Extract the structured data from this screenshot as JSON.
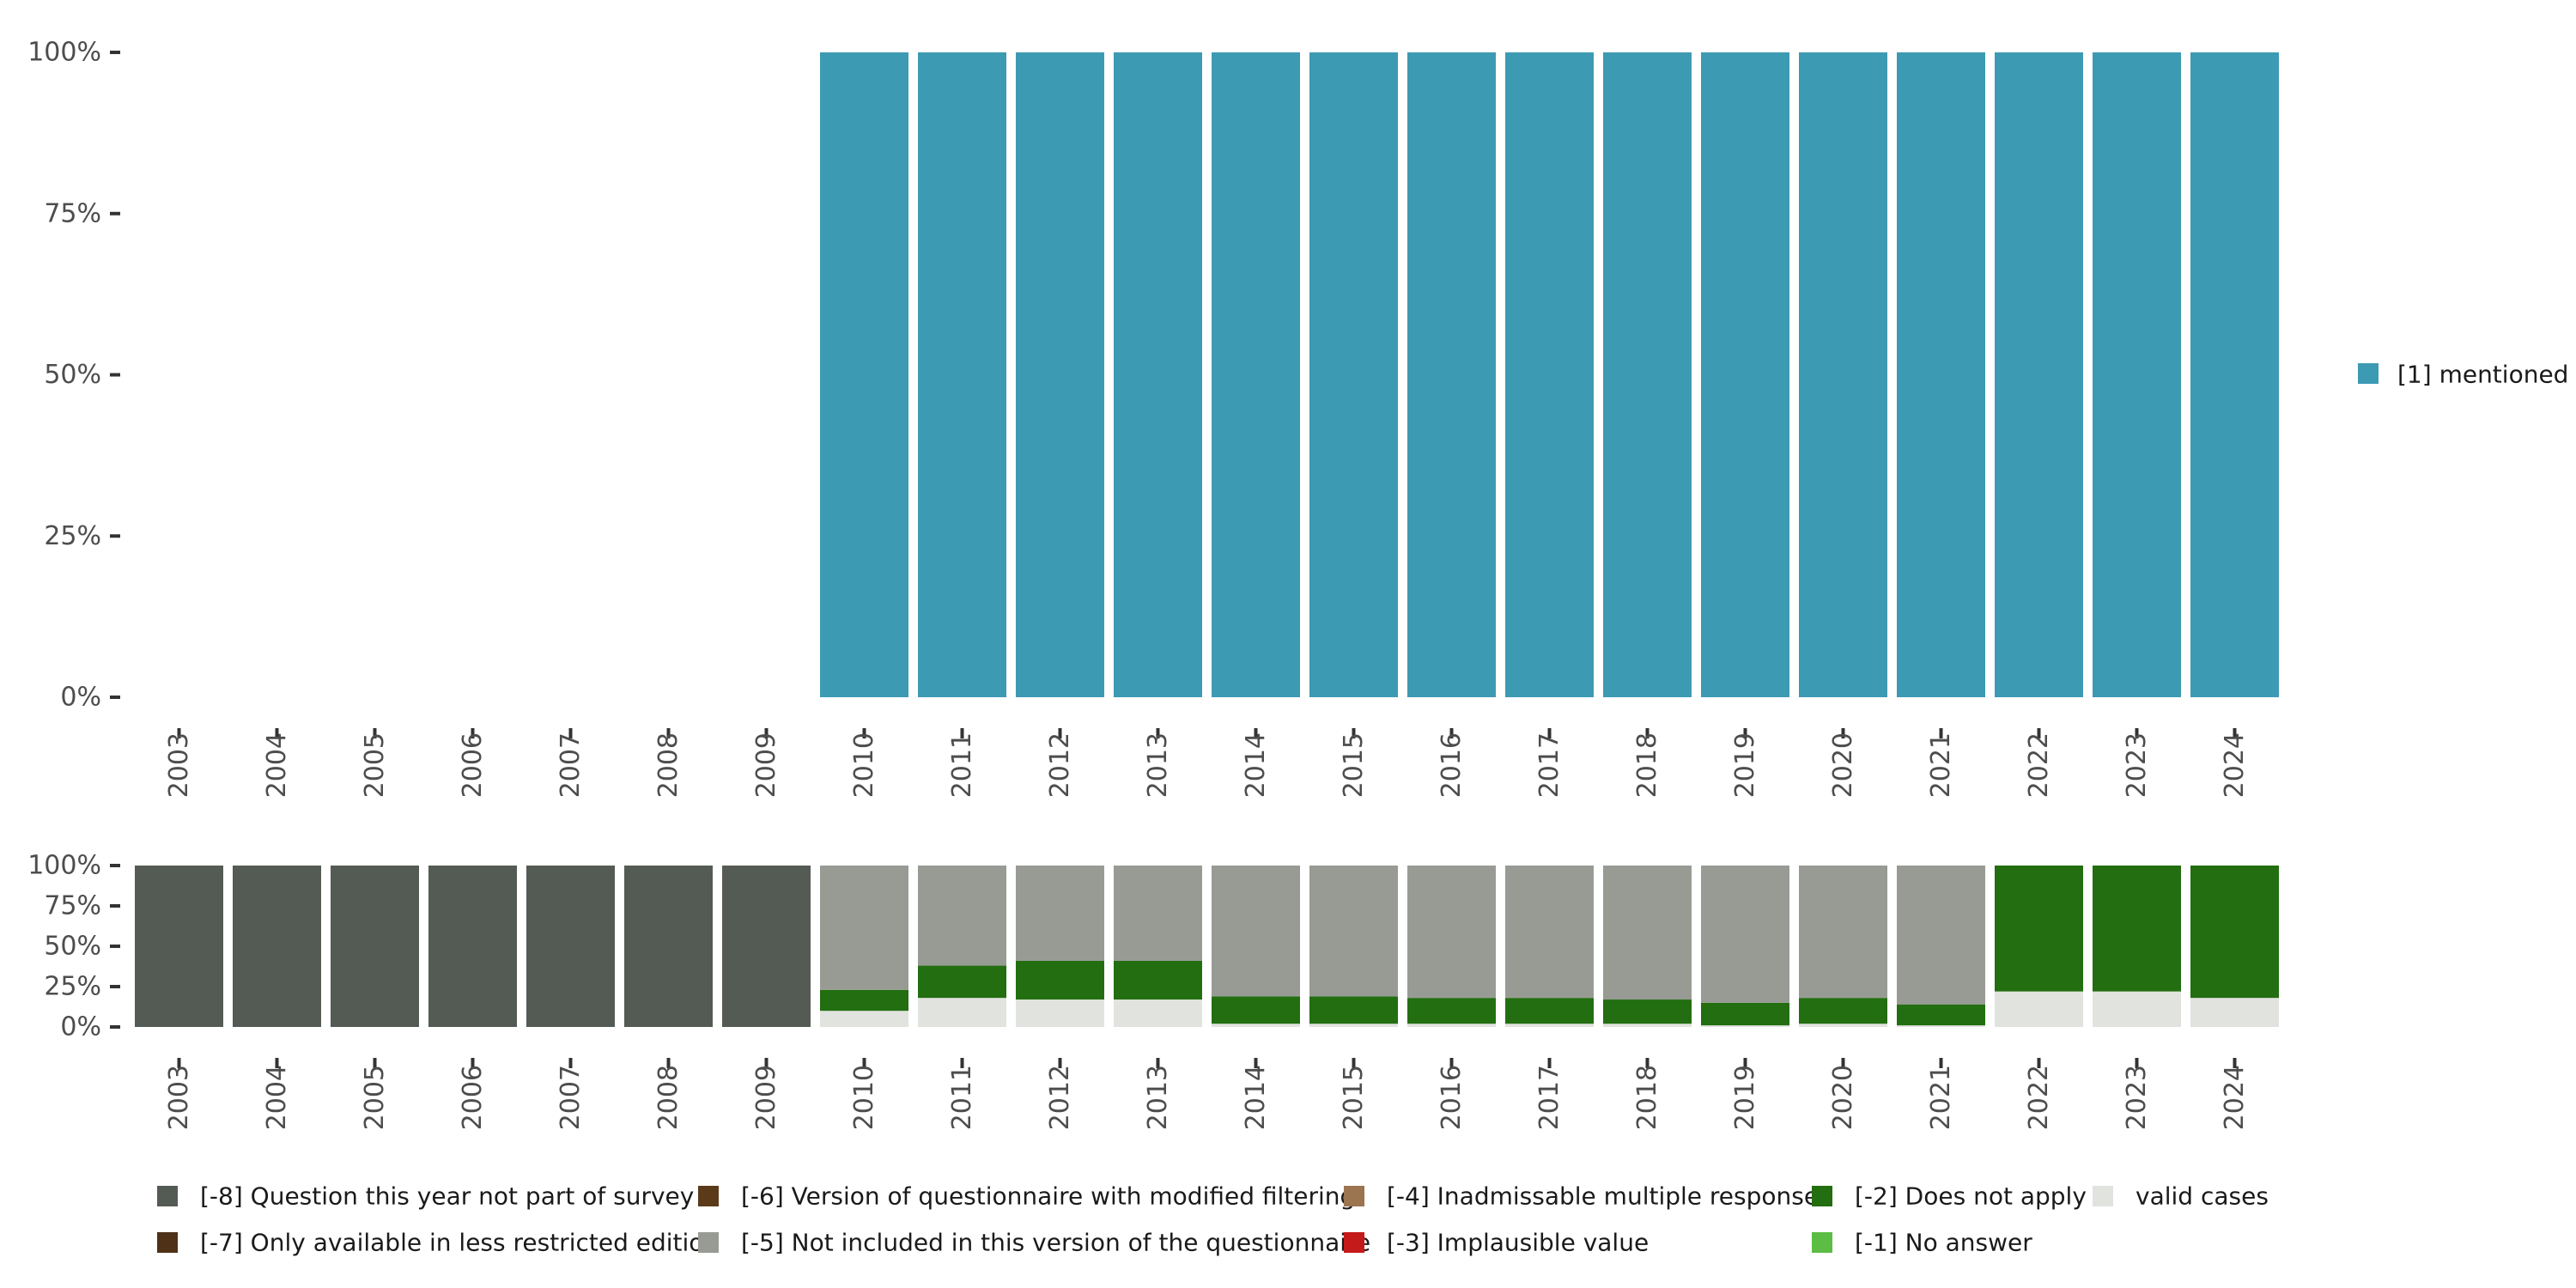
{
  "chart_data": [
    {
      "type": "bar",
      "stacked": true,
      "percent": true,
      "categories": [
        "2003",
        "2004",
        "2005",
        "2006",
        "2007",
        "2008",
        "2009",
        "2010",
        "2011",
        "2012",
        "2013",
        "2014",
        "2015",
        "2016",
        "2017",
        "2018",
        "2019",
        "2020",
        "2021",
        "2022",
        "2023",
        "2024"
      ],
      "series": [
        {
          "name": "[1] mentioned",
          "color": "#3d9ab3",
          "values": [
            null,
            null,
            null,
            null,
            null,
            null,
            null,
            100,
            100,
            100,
            100,
            100,
            100,
            100,
            100,
            100,
            100,
            100,
            100,
            100,
            100,
            100
          ]
        }
      ],
      "yticks": [
        "0%",
        "25%",
        "50%",
        "75%",
        "100%"
      ],
      "ylim": [
        0,
        100
      ],
      "legend_position": "right"
    },
    {
      "type": "bar",
      "stacked": true,
      "percent": true,
      "categories": [
        "2003",
        "2004",
        "2005",
        "2006",
        "2007",
        "2008",
        "2009",
        "2010",
        "2011",
        "2012",
        "2013",
        "2014",
        "2015",
        "2016",
        "2017",
        "2018",
        "2019",
        "2020",
        "2021",
        "2022",
        "2023",
        "2024"
      ],
      "series": [
        {
          "name": "valid cases",
          "color": "#e1e3df",
          "values": [
            0,
            0,
            0,
            0,
            0,
            0,
            0,
            10,
            18,
            17,
            17,
            2,
            2,
            2,
            2,
            2,
            1,
            2,
            1,
            22,
            22,
            18
          ]
        },
        {
          "name": "[-1] No answer",
          "color": "#5cbd44",
          "values": [
            0,
            0,
            0,
            0,
            0,
            0,
            0,
            0,
            0,
            0,
            0,
            0,
            0,
            0,
            0,
            0,
            0,
            0,
            0,
            0,
            0,
            0
          ]
        },
        {
          "name": "[-2] Does not apply",
          "color": "#226e10",
          "values": [
            0,
            0,
            0,
            0,
            0,
            0,
            0,
            13,
            20,
            24,
            24,
            17,
            17,
            16,
            16,
            15,
            14,
            16,
            13,
            78,
            78,
            82
          ]
        },
        {
          "name": "[-3] Implausible value",
          "color": "#c41a1a",
          "values": [
            0,
            0,
            0,
            0,
            0,
            0,
            0,
            0,
            0,
            0,
            0,
            0,
            0,
            0,
            0,
            0,
            0,
            0,
            0,
            0,
            0,
            0
          ]
        },
        {
          "name": "[-4] Inadmissable multiple response",
          "color": "#9b7450",
          "values": [
            0,
            0,
            0,
            0,
            0,
            0,
            0,
            0,
            0,
            0,
            0,
            0,
            0,
            0,
            0,
            0,
            0,
            0,
            0,
            0,
            0,
            0
          ]
        },
        {
          "name": "[-5] Not included in this version of the questionnaire",
          "color": "#989b94",
          "values": [
            0,
            0,
            0,
            0,
            0,
            0,
            0,
            77,
            62,
            59,
            59,
            81,
            81,
            82,
            82,
            83,
            85,
            82,
            86,
            0,
            0,
            0
          ]
        },
        {
          "name": "[-6] Version of questionnaire with modified filtering",
          "color": "#5b3a1a",
          "values": [
            0,
            0,
            0,
            0,
            0,
            0,
            0,
            0,
            0,
            0,
            0,
            0,
            0,
            0,
            0,
            0,
            0,
            0,
            0,
            0,
            0,
            0
          ]
        },
        {
          "name": "[-7] Only available in less restricted edition",
          "color": "#4e3117",
          "values": [
            0,
            0,
            0,
            0,
            0,
            0,
            0,
            0,
            0,
            0,
            0,
            0,
            0,
            0,
            0,
            0,
            0,
            0,
            0,
            0,
            0,
            0
          ]
        },
        {
          "name": "[-8] Question this year not part of survey",
          "color": "#545b54",
          "values": [
            100,
            100,
            100,
            100,
            100,
            100,
            100,
            0,
            0,
            0,
            0,
            0,
            0,
            0,
            0,
            0,
            0,
            0,
            0,
            0,
            0,
            0
          ]
        }
      ],
      "yticks": [
        "0%",
        "25%",
        "50%",
        "75%",
        "100%"
      ],
      "ylim": [
        0,
        100
      ],
      "legend_position": "bottom",
      "legend_order": [
        "[-8] Question this year not part of survey",
        "[-7] Only available in less restricted edition",
        "[-6] Version of questionnaire with modified filtering",
        "[-5] Not included in this version of the questionnaire",
        "[-4] Inadmissable multiple response",
        "[-3] Implausible value",
        "[-2] Does not apply",
        "[-1] No answer",
        "valid cases"
      ]
    }
  ]
}
